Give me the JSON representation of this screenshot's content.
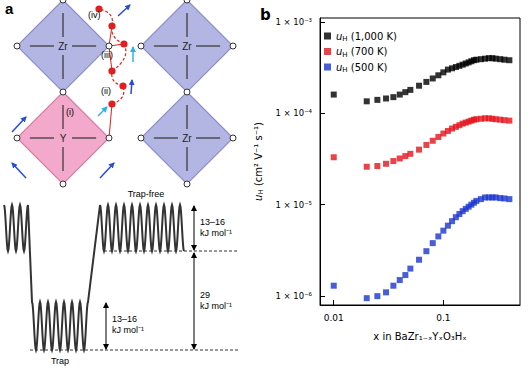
{
  "diagram": {
    "label": "a",
    "octahedra": [
      {
        "label": "Zr"
      },
      {
        "label": "Zr"
      },
      {
        "label": "Y"
      },
      {
        "label": "Zr"
      }
    ],
    "steps": [
      "(i)",
      "(ii)",
      "(iii)",
      "(iv)"
    ],
    "energy": {
      "trap_free": "Trap-free",
      "trap": "Trap",
      "barriers": [
        "13–16 kJ mol⁻¹",
        "13–16 kJ mol⁻¹"
      ],
      "trap_depth": "29 kJ mol⁻¹"
    }
  },
  "chart_data": {
    "type": "scatter",
    "title": "b",
    "x_label": "x in BaZr₁₋ₓYₓO₃Hₓ",
    "y_label": "uH (cm² V⁻¹ s⁻¹)",
    "log": true,
    "grid": false,
    "legend": "upper left",
    "marker": "square",
    "xlim": [
      0.0075,
      0.5
    ],
    "xticks": [
      0.01,
      0.1
    ],
    "ylim": [
      8e-07,
      0.0011
    ],
    "yticks": [
      {
        "value": 1e-06,
        "label": "1 × 10⁻⁶"
      },
      {
        "value": 1e-05,
        "label": "1 × 10⁻⁵"
      },
      {
        "value": 0.0001,
        "label": "1 × 10⁻⁴"
      },
      {
        "value": 0.001,
        "label": "1 × 10⁻³"
      }
    ],
    "x": [
      0.01,
      0.02,
      0.025,
      0.03,
      0.035,
      0.04,
      0.045,
      0.05,
      0.06,
      0.07,
      0.08,
      0.09,
      0.1,
      0.11,
      0.12,
      0.13,
      0.14,
      0.15,
      0.16,
      0.17,
      0.18,
      0.19,
      0.2,
      0.22,
      0.24,
      0.26,
      0.28,
      0.3,
      0.33,
      0.36,
      0.4
    ],
    "series": [
      {
        "name": "uH (1,000 K)",
        "color": "#000000",
        "values": [
          0.00016,
          0.000135,
          0.00014,
          0.000145,
          0.00015,
          0.00016,
          0.00017,
          0.00018,
          0.0002,
          0.00022,
          0.00024,
          0.00026,
          0.00028,
          0.0003,
          0.00031,
          0.00032,
          0.00033,
          0.00034,
          0.00035,
          0.00036,
          0.00037,
          0.00038,
          0.000385,
          0.00039,
          0.000395,
          0.0004,
          0.0004,
          0.000395,
          0.00039,
          0.000385,
          0.00038
        ]
      },
      {
        "name": "uH (700 K)",
        "color": "#e3141b",
        "values": [
          3.3e-05,
          2.6e-05,
          2.65e-05,
          2.8e-05,
          3e-05,
          3.2e-05,
          3.4e-05,
          3.6e-05,
          4e-05,
          4.5e-05,
          5e-05,
          5.5e-05,
          6e-05,
          6.4e-05,
          6.8e-05,
          7.1e-05,
          7.4e-05,
          7.7e-05,
          7.9e-05,
          8.1e-05,
          8.3e-05,
          8.5e-05,
          8.6e-05,
          8.7e-05,
          8.8e-05,
          8.8e-05,
          8.7e-05,
          8.6e-05,
          8.5e-05,
          8.4e-05,
          8.3e-05
        ]
      },
      {
        "name": "uH (500 K)",
        "color": "#1a35d0",
        "values": [
          1.3e-06,
          9.5e-07,
          1e-06,
          1.1e-06,
          1.3e-06,
          1.5e-06,
          1.7e-06,
          2e-06,
          2.5e-06,
          3.1e-06,
          3.8e-06,
          4.5e-06,
          5.2e-06,
          5.9e-06,
          6.6e-06,
          7.3e-06,
          7.9e-06,
          8.5e-06,
          9e-06,
          9.5e-06,
          1e-05,
          1.05e-05,
          1.1e-05,
          1.15e-05,
          1.2e-05,
          1.2e-05,
          1.2e-05,
          1.2e-05,
          1.18e-05,
          1.17e-05,
          1.15e-05
        ]
      }
    ]
  }
}
